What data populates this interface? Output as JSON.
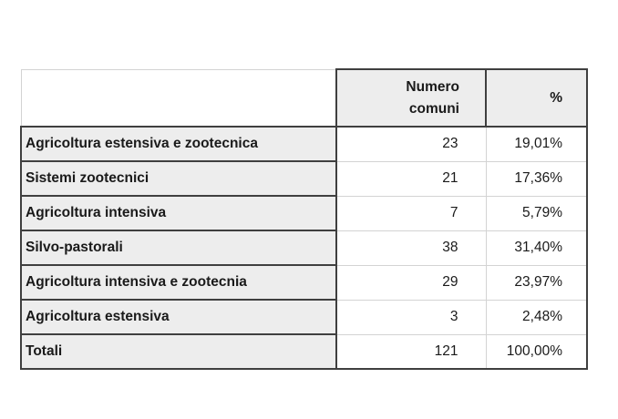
{
  "table": {
    "header": {
      "label": "",
      "numero": "Numero\ncomuni",
      "pct": "%"
    },
    "rows": [
      {
        "label": "Agricoltura estensiva e zootecnica",
        "numero": "23",
        "pct": "19,01%"
      },
      {
        "label": "Sistemi zootecnici",
        "numero": "21",
        "pct": "17,36%"
      },
      {
        "label": "Agricoltura intensiva",
        "numero": "7",
        "pct": "5,79%"
      },
      {
        "label": "Silvo-pastorali",
        "numero": "38",
        "pct": "31,40%"
      },
      {
        "label": "Agricoltura intensiva e zootecnia",
        "numero": "29",
        "pct": "23,97%"
      },
      {
        "label": "Agricoltura estensiva",
        "numero": "3",
        "pct": "2,48%"
      },
      {
        "label": "Totali",
        "numero": "121",
        "pct": "100,00%"
      }
    ],
    "colors": {
      "cell_gray": "#ededed",
      "border_dark": "#3f3f3f",
      "border_light": "#d3d3d3",
      "text_color": "#1a1a1a",
      "page_bg": "#ffffff"
    }
  }
}
